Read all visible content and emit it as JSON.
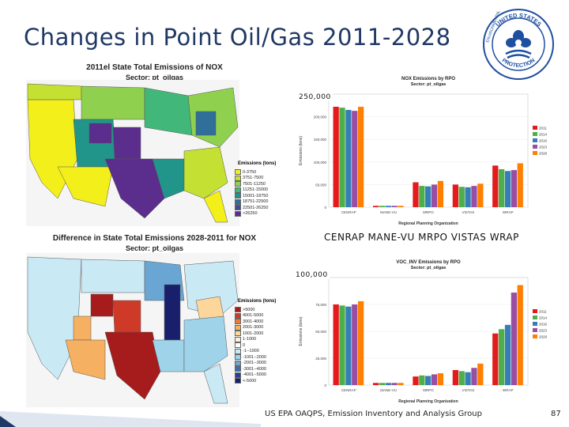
{
  "slide": {
    "title": "Changes in Point Oil/Gas 2011-2028",
    "footer": "US EPA OAQPS, Emission Inventory and Analysis Group",
    "page_number": "87",
    "overlay_250": "250,000",
    "overlay_100": "100,000",
    "rpo_caption": "CENRAP MANE-VU MRPO VISTAS WRAP"
  },
  "logo": {
    "text_top": "UNITED STATES",
    "text_left": "ENVIRONMENTAL",
    "text_bottom": "PROTECTION",
    "color": "#1f4fa0"
  },
  "map1": {
    "title_line1": "2011el State Total Emissions of NOX",
    "title_line2": "Sector: pt_oilgas",
    "legend_title": "Emissions (tons)",
    "legend": [
      {
        "label": "0-3750",
        "color": "#f2ef1a"
      },
      {
        "label": "3751-7500",
        "color": "#c4e033"
      },
      {
        "label": "7501-11250",
        "color": "#8fd14f"
      },
      {
        "label": "11251-15000",
        "color": "#41b879"
      },
      {
        "label": "15001-18750",
        "color": "#21958a"
      },
      {
        "label": "18751-22500",
        "color": "#2f6f9a"
      },
      {
        "label": "22501-26250",
        "color": "#3c4f91"
      },
      {
        "label": ">26250",
        "color": "#5b2d8c"
      }
    ]
  },
  "map2": {
    "title_line1": "Difference in State Total Emissions 2028-2011 for NOX",
    "title_line2": "Sector: pt_oilgas",
    "legend_title": "Emissions (tons)",
    "legend": [
      {
        "label": ">5000",
        "color": "#a61c1c"
      },
      {
        "label": "4001-5000",
        "color": "#cf3a28"
      },
      {
        "label": "3001-4000",
        "color": "#ef7a38"
      },
      {
        "label": "2001-3000",
        "color": "#f6b061"
      },
      {
        "label": "1001-2000",
        "color": "#fcd69a"
      },
      {
        "label": "1-1000",
        "color": "#fdf0d2"
      },
      {
        "label": "0",
        "color": "#ffffff"
      },
      {
        "label": "-1--1000",
        "color": "#c9e9f5"
      },
      {
        "label": "-1001--2000",
        "color": "#9ed3ea"
      },
      {
        "label": "-2001--3000",
        "color": "#6aa6d3"
      },
      {
        "label": "-3001--4000",
        "color": "#3d6db3"
      },
      {
        "label": "-4001--5000",
        "color": "#2a3f8f"
      },
      {
        "label": "<-5000",
        "color": "#1a1f6b"
      }
    ]
  },
  "chart_data": [
    {
      "type": "bar",
      "title": "NOX Emissions by RPO",
      "subtitle": "Sector: pt_oilgas",
      "xlabel": "Regional Planning Organization",
      "ylabel": "Emissions (tons)",
      "categories": [
        "CENRAP",
        "MANE-VU",
        "MRPO",
        "VISTAS",
        "WRAP"
      ],
      "ylim": [
        0,
        250000
      ],
      "yticks": [
        0,
        50000,
        100000,
        150000,
        200000
      ],
      "ytick_labels": [
        "0",
        "50,000",
        "100,000",
        "150,000",
        "200,000"
      ],
      "series": [
        {
          "name": "2011",
          "color": "#e41a1c",
          "values": [
            222000,
            3000,
            55000,
            50000,
            92000
          ]
        },
        {
          "name": "2014",
          "color": "#4daf4a",
          "values": [
            220000,
            3000,
            47000,
            45000,
            84000
          ]
        },
        {
          "name": "2016",
          "color": "#377eb8",
          "values": [
            215000,
            3000,
            46000,
            44000,
            80000
          ]
        },
        {
          "name": "2023",
          "color": "#984ea3",
          "values": [
            213000,
            3000,
            50000,
            47000,
            82000
          ]
        },
        {
          "name": "2028",
          "color": "#ff7f00",
          "values": [
            222000,
            3000,
            58000,
            52000,
            97000
          ]
        }
      ]
    },
    {
      "type": "bar",
      "title": "VOC_INV Emissions by RPO",
      "subtitle": "Sector: pt_oilgas",
      "xlabel": "Regional Planning Organization",
      "ylabel": "Emissions (tons)",
      "categories": [
        "CENRAP",
        "MANE-VU",
        "MRPO",
        "VISTAS",
        "WRAP"
      ],
      "ylim": [
        0,
        100000
      ],
      "yticks": [
        0,
        25000,
        50000,
        75000
      ],
      "ytick_labels": [
        "0",
        "25,000",
        "50,000",
        "75,000"
      ],
      "series": [
        {
          "name": "2011",
          "color": "#e41a1c",
          "values": [
            75000,
            2000,
            8000,
            14000,
            48000
          ]
        },
        {
          "name": "2014",
          "color": "#4daf4a",
          "values": [
            74000,
            2000,
            9000,
            13000,
            52000
          ]
        },
        {
          "name": "2016",
          "color": "#377eb8",
          "values": [
            73000,
            2000,
            8500,
            12000,
            56000
          ]
        },
        {
          "name": "2023",
          "color": "#984ea3",
          "values": [
            75000,
            2000,
            10000,
            16000,
            86000
          ]
        },
        {
          "name": "2028",
          "color": "#ff7f00",
          "values": [
            78000,
            2000,
            11000,
            20000,
            93000
          ]
        }
      ]
    }
  ]
}
